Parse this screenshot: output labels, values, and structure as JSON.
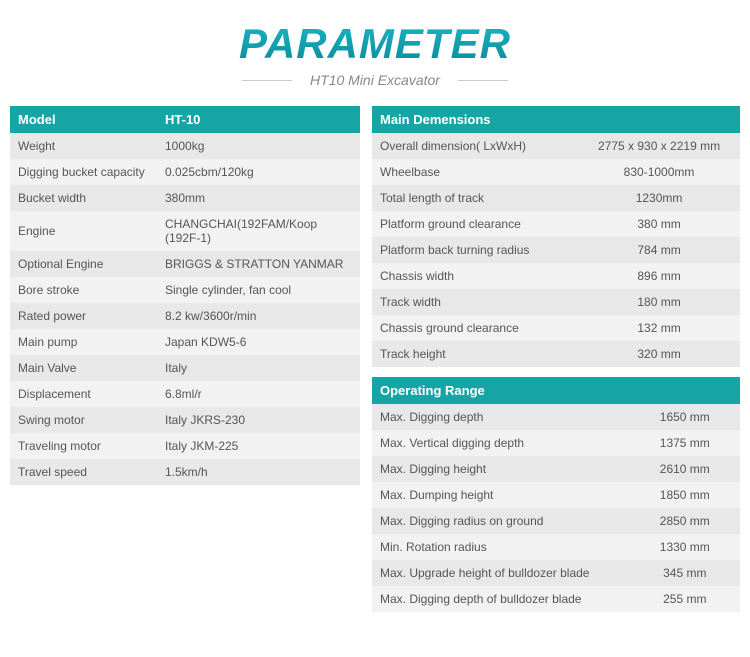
{
  "title": "PARAMETER",
  "subtitle": "HT10 Mini Excavator",
  "colors": {
    "header_bg": "#16a5a5",
    "header_text": "#ffffff",
    "row_odd": "#e8e8e8",
    "row_even": "#f2f2f2",
    "text": "#555555",
    "title_gradient_top": "#1cb5c4",
    "title_gradient_bottom": "#0a8a99"
  },
  "left_table": {
    "header": {
      "label": "Model",
      "value": "HT-10"
    },
    "rows": [
      {
        "label": "Weight",
        "value": "1000kg"
      },
      {
        "label": "Digging bucket capacity",
        "value": "0.025cbm/120kg"
      },
      {
        "label": "Bucket width",
        "value": "380mm"
      },
      {
        "label": "Engine",
        "value": "CHANGCHAI(192FAM/Koop (192F-1)"
      },
      {
        "label": "Optional Engine",
        "value": "BRIGGS & STRATTON YANMAR"
      },
      {
        "label": "Bore stroke",
        "value": "Single cylinder, fan cool"
      },
      {
        "label": "Rated power",
        "value": "8.2 kw/3600r/min"
      },
      {
        "label": "Main pump",
        "value": "Japan KDW5-6"
      },
      {
        "label": "Main Valve",
        "value": "Italy"
      },
      {
        "label": "Displacement",
        "value": "6.8ml/r"
      },
      {
        "label": "Swing motor",
        "value": "Italy JKRS-230"
      },
      {
        "label": "Traveling motor",
        "value": "Italy JKM-225"
      },
      {
        "label": "Travel speed",
        "value": "1.5km/h"
      }
    ]
  },
  "dimensions_table": {
    "header": "Main Demensions",
    "rows": [
      {
        "label": "Overall dimension( LxWxH)",
        "value": "2775 x 930 x 2219 mm"
      },
      {
        "label": "Wheelbase",
        "value": "830-1000mm"
      },
      {
        "label": "Total length of track",
        "value": "1230mm"
      },
      {
        "label": "Platform ground clearance",
        "value": "380 mm"
      },
      {
        "label": "Platform back turning radius",
        "value": "784 mm"
      },
      {
        "label": "Chassis width",
        "value": "896 mm"
      },
      {
        "label": "Track width",
        "value": "180 mm"
      },
      {
        "label": "Chassis ground clearance",
        "value": "132 mm"
      },
      {
        "label": "Track height",
        "value": "320 mm"
      }
    ]
  },
  "operating_table": {
    "header": "Operating Range",
    "rows": [
      {
        "label": "Max. Digging depth",
        "value": "1650 mm"
      },
      {
        "label": "Max. Vertical digging depth",
        "value": "1375 mm"
      },
      {
        "label": "Max. Digging height",
        "value": "2610 mm"
      },
      {
        "label": "Max. Dumping height",
        "value": "1850 mm"
      },
      {
        "label": "Max. Digging radius on ground",
        "value": "2850 mm"
      },
      {
        "label": "Min. Rotation radius",
        "value": "1330 mm"
      },
      {
        "label": "Max. Upgrade height of bulldozer blade",
        "value": "345 mm"
      },
      {
        "label": "Max. Digging depth of bulldozer blade",
        "value": "255 mm"
      }
    ]
  },
  "column_widths": {
    "left_label_pct": 42,
    "left_value_pct": 58,
    "dim_label_pct": 56,
    "dim_value_pct": 44,
    "op_label_pct": 70,
    "op_value_pct": 30
  }
}
